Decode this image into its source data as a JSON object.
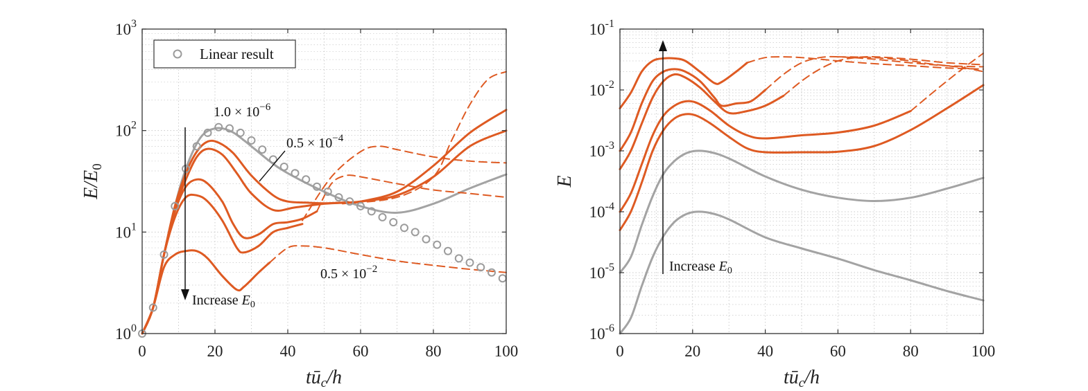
{
  "colors": {
    "orange": "#de5a22",
    "gray": "#a3a3a3",
    "marker": "#9b9b9b",
    "axis": "#333333",
    "grid": "#c8c8c8"
  },
  "chart_data": [
    {
      "type": "line",
      "panel": "left",
      "yscale": "log",
      "xlabel": "tū_c/h",
      "ylabel": "E/E_0",
      "xlim": [
        0,
        100
      ],
      "ylim_exp": [
        0,
        3
      ],
      "xticks": [
        "0",
        "20",
        "40",
        "60",
        "80",
        "100"
      ],
      "yticks": [
        {
          "base": "10",
          "exp": "0"
        },
        {
          "base": "10",
          "exp": "1"
        },
        {
          "base": "10",
          "exp": "2"
        },
        {
          "base": "10",
          "exp": "3"
        }
      ],
      "legend": {
        "label": "Linear result",
        "position": "top-left"
      },
      "annotations": {
        "label_top": "1.0 × 10",
        "label_top_exp": "−6",
        "label_mid": "0.5 × 10",
        "label_mid_exp": "−4",
        "label_low": "0.5 × 10",
        "label_low_exp": "−2",
        "arrow_text": "Increase ",
        "arrow_sym": "E",
        "arrow_sub": "0"
      },
      "linear_markers": {
        "x": [
          0,
          3,
          6,
          9,
          12,
          15,
          18,
          21,
          24,
          27,
          30,
          33,
          36,
          39,
          42,
          45,
          48,
          51,
          54,
          57,
          60,
          63,
          66,
          69,
          72,
          75,
          78,
          81,
          84,
          87,
          90,
          93,
          96,
          99
        ],
        "y": [
          1,
          1.8,
          6,
          18,
          42,
          70,
          95,
          108,
          105,
          95,
          80,
          65,
          52,
          44,
          38,
          33,
          28,
          25,
          22,
          20,
          18,
          16,
          14,
          12.5,
          11,
          10,
          8.5,
          7.5,
          6.5,
          5.5,
          5,
          4.5,
          4,
          3.5
        ]
      },
      "series": [
        {
          "name": "gray-nonlinear",
          "color": "gray",
          "dash": false,
          "width": 3,
          "x": [
            0,
            3,
            6,
            9,
            12,
            16,
            20,
            24,
            28,
            35,
            40,
            50,
            60,
            70,
            80,
            90,
            100
          ],
          "y": [
            1,
            1.8,
            6,
            18,
            42,
            85,
            105,
            100,
            80,
            50,
            38,
            25,
            18,
            15.5,
            19,
            27,
            37
          ]
        },
        {
          "name": "orange-1",
          "color": "orange",
          "dash": false,
          "width": 3,
          "x": [
            0,
            3,
            6,
            9,
            12,
            15,
            18,
            21,
            25,
            30,
            36,
            40,
            45,
            50,
            55,
            60,
            70,
            80,
            90,
            100
          ],
          "y": [
            1,
            1.8,
            6,
            18,
            38,
            62,
            78,
            76,
            60,
            36,
            23,
            20,
            19.5,
            19.2,
            19.5,
            20,
            23,
            35,
            70,
            100
          ]
        },
        {
          "name": "orange-2",
          "color": "orange",
          "dash": false,
          "width": 3,
          "x": [
            0,
            3,
            6,
            9,
            12,
            15,
            18,
            22,
            26,
            30,
            36,
            42,
            50,
            56,
            60,
            70,
            80,
            90,
            100
          ],
          "y": [
            1,
            1.8,
            6,
            17,
            33,
            55,
            66,
            58,
            38,
            24,
            16.5,
            17.5,
            19,
            19.5,
            20,
            25,
            45,
            95,
            160
          ]
        },
        {
          "name": "orange-3",
          "color": "orange",
          "dash": false,
          "width": 3,
          "x": [
            0,
            3,
            6,
            9,
            12,
            15,
            18,
            22,
            25,
            28,
            32,
            36,
            40,
            44,
            48
          ],
          "y": [
            1,
            1.8,
            6,
            16,
            28,
            33,
            30,
            20,
            12,
            8.8,
            9.5,
            12,
            12.5,
            13.5,
            16
          ]
        },
        {
          "name": "orange-4",
          "color": "orange",
          "dash": false,
          "width": 3,
          "x": [
            0,
            3,
            6,
            9,
            12,
            15,
            18,
            22,
            26,
            28,
            32,
            36,
            40,
            44
          ],
          "y": [
            1,
            1.8,
            6,
            14,
            22,
            23,
            20,
            13,
            7,
            6.3,
            7.3,
            10,
            11,
            12
          ]
        },
        {
          "name": "orange-5",
          "color": "orange",
          "dash": false,
          "width": 3,
          "x": [
            0,
            3,
            6,
            9,
            12,
            15,
            18,
            22,
            26,
            28,
            32,
            35
          ],
          "y": [
            1,
            1.8,
            4.5,
            6,
            6.5,
            6.5,
            5.5,
            3.7,
            2.7,
            2.9,
            4,
            5
          ]
        },
        {
          "name": "dashed-1",
          "color": "orange",
          "dash": true,
          "width": 2,
          "x": [
            44,
            52,
            60,
            65,
            70,
            80,
            90,
            100
          ],
          "y": [
            13,
            35,
            62,
            70,
            65,
            55,
            50,
            48
          ]
        },
        {
          "name": "dashed-2",
          "color": "orange",
          "dash": true,
          "width": 2,
          "x": [
            48,
            52,
            56,
            60,
            70,
            80,
            90,
            100
          ],
          "y": [
            16,
            30,
            36,
            35,
            30,
            26,
            24,
            22
          ]
        },
        {
          "name": "dashed-3",
          "color": "orange",
          "dash": true,
          "width": 2,
          "x": [
            35,
            40,
            44,
            50,
            60,
            70,
            80,
            90,
            100
          ],
          "y": [
            5,
            7,
            7.3,
            7,
            6,
            5.2,
            4.7,
            4.3,
            4
          ]
        },
        {
          "name": "dashed-4",
          "color": "orange",
          "dash": true,
          "width": 2,
          "x": [
            55,
            70,
            80,
            85,
            90,
            95,
            100
          ],
          "y": [
            19,
            22,
            35,
            80,
            180,
            320,
            380
          ]
        }
      ]
    },
    {
      "type": "line",
      "panel": "right",
      "yscale": "log",
      "xlabel": "tū_c/h",
      "ylabel": "E",
      "xlim": [
        0,
        100
      ],
      "ylim_exp": [
        -6,
        -1
      ],
      "xticks": [
        "0",
        "20",
        "40",
        "60",
        "80",
        "100"
      ],
      "yticks": [
        {
          "base": "10",
          "exp": "-6"
        },
        {
          "base": "10",
          "exp": "-5"
        },
        {
          "base": "10",
          "exp": "-4"
        },
        {
          "base": "10",
          "exp": "-3"
        },
        {
          "base": "10",
          "exp": "-2"
        },
        {
          "base": "10",
          "exp": "-1"
        }
      ],
      "annotations": {
        "arrow_text": "Increase ",
        "arrow_sym": "E",
        "arrow_sub": "0"
      },
      "series": [
        {
          "name": "gray-1",
          "color": "gray",
          "dash": false,
          "width": 3,
          "x": [
            0,
            3,
            6,
            9,
            12,
            15,
            18,
            21,
            25,
            30,
            40,
            50,
            60,
            70,
            80,
            90,
            100
          ],
          "y": [
            1e-06,
            1.8e-06,
            6e-06,
            1.8e-05,
            4e-05,
            6.8e-05,
            9e-05,
            0.0001,
            9.5e-05,
            7.5e-05,
            3.8e-05,
            2.5e-05,
            1.7e-05,
            1.1e-05,
            7.5e-06,
            5e-06,
            3.5e-06
          ]
        },
        {
          "name": "gray-2",
          "color": "gray",
          "dash": false,
          "width": 3,
          "x": [
            0,
            3,
            6,
            9,
            12,
            15,
            18,
            21,
            25,
            30,
            40,
            50,
            60,
            70,
            80,
            90,
            100
          ],
          "y": [
            1e-05,
            1.8e-05,
            6e-05,
            0.00018,
            0.00042,
            0.00068,
            0.0009,
            0.001,
            0.00095,
            0.00075,
            0.00038,
            0.00023,
            0.00017,
            0.00015,
            0.00017,
            0.00024,
            0.00036
          ]
        },
        {
          "name": "orange-a",
          "color": "orange",
          "dash": false,
          "width": 3,
          "x": [
            0,
            3,
            6,
            9,
            12,
            15,
            18,
            21,
            25,
            30,
            35,
            40,
            50,
            60,
            70,
            80,
            90,
            100
          ],
          "y": [
            5e-05,
            0.0001,
            0.0003,
            0.001,
            0.0022,
            0.0034,
            0.004,
            0.0038,
            0.0028,
            0.0017,
            0.0011,
            0.00095,
            0.00095,
            0.00097,
            0.0012,
            0.0022,
            0.005,
            0.012
          ]
        },
        {
          "name": "orange-b",
          "color": "orange",
          "dash": false,
          "width": 3,
          "x": [
            0,
            3,
            6,
            9,
            12,
            15,
            18,
            21,
            25,
            30,
            35,
            40,
            50,
            60,
            70,
            80
          ],
          "y": [
            0.0001,
            0.0002,
            0.0006,
            0.0018,
            0.0038,
            0.0055,
            0.0065,
            0.0062,
            0.0045,
            0.0026,
            0.0018,
            0.0016,
            0.0018,
            0.002,
            0.0026,
            0.0045
          ]
        },
        {
          "name": "orange-c",
          "color": "orange",
          "dash": false,
          "width": 3,
          "x": [
            0,
            3,
            6,
            9,
            12,
            15,
            18,
            22,
            26,
            30,
            35,
            40,
            45
          ],
          "y": [
            0.0005,
            0.001,
            0.0028,
            0.0075,
            0.014,
            0.018,
            0.016,
            0.011,
            0.0065,
            0.0042,
            0.0045,
            0.0055,
            0.008
          ]
        },
        {
          "name": "orange-d",
          "color": "orange",
          "dash": false,
          "width": 3,
          "x": [
            0,
            3,
            6,
            9,
            12,
            15,
            18,
            22,
            26,
            28,
            32,
            36,
            40
          ],
          "y": [
            0.001,
            0.002,
            0.006,
            0.014,
            0.02,
            0.022,
            0.02,
            0.014,
            0.0075,
            0.0055,
            0.006,
            0.0065,
            0.01
          ]
        },
        {
          "name": "orange-e",
          "color": "orange",
          "dash": false,
          "width": 3,
          "x": [
            0,
            3,
            6,
            9,
            12,
            15,
            18,
            22,
            26,
            28,
            32,
            35
          ],
          "y": [
            0.005,
            0.009,
            0.02,
            0.03,
            0.033,
            0.033,
            0.03,
            0.02,
            0.013,
            0.0135,
            0.02,
            0.028
          ]
        },
        {
          "name": "dashed-a",
          "color": "orange",
          "dash": true,
          "width": 2,
          "x": [
            35,
            40,
            45,
            50,
            55,
            60,
            70,
            80,
            90,
            100
          ],
          "y": [
            0.028,
            0.034,
            0.035,
            0.034,
            0.032,
            0.03,
            0.027,
            0.025,
            0.023,
            0.022
          ]
        },
        {
          "name": "dashed-b",
          "color": "orange",
          "dash": true,
          "width": 2,
          "x": [
            40,
            45,
            50,
            55,
            60,
            70,
            80,
            90,
            100
          ],
          "y": [
            0.01,
            0.018,
            0.028,
            0.034,
            0.035,
            0.032,
            0.028,
            0.025,
            0.024
          ]
        },
        {
          "name": "dashed-c",
          "color": "orange",
          "dash": true,
          "width": 2,
          "x": [
            45,
            50,
            55,
            60,
            65,
            70,
            80,
            90,
            100
          ],
          "y": [
            0.008,
            0.014,
            0.022,
            0.03,
            0.034,
            0.035,
            0.032,
            0.028,
            0.026
          ]
        },
        {
          "name": "dashed-d",
          "color": "orange",
          "dash": true,
          "width": 2,
          "x": [
            80,
            85,
            90,
            95,
            100
          ],
          "y": [
            0.0045,
            0.008,
            0.014,
            0.024,
            0.04
          ]
        },
        {
          "name": "dashed-e",
          "color": "orange",
          "dash": true,
          "width": 2,
          "x": [
            60,
            70,
            80,
            85,
            90,
            95,
            100
          ],
          "y": [
            0.035,
            0.034,
            0.03,
            0.027,
            0.025,
            0.023,
            0.02
          ]
        }
      ]
    }
  ]
}
